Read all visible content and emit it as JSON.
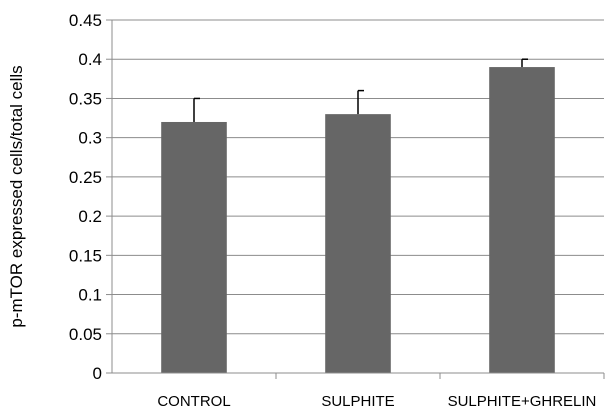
{
  "chart_data": {
    "type": "bar",
    "categories": [
      "CONTROL",
      "SULPHITE",
      "SULPHITE+GHRELIN"
    ],
    "values": [
      0.32,
      0.33,
      0.39
    ],
    "error_plus": [
      0.03,
      0.03,
      0.01
    ],
    "ylabel": "p-mTOR expressed cells/total cells",
    "ylim": [
      0,
      0.45
    ],
    "yticks": [
      "0",
      "0.05",
      "0.1",
      "0.15",
      "0.2",
      "0.25",
      "0.3",
      "0.35",
      "0.4",
      "0.45"
    ],
    "grid": true,
    "bar_color": "#666666",
    "grid_color": "#8c8c8c"
  }
}
